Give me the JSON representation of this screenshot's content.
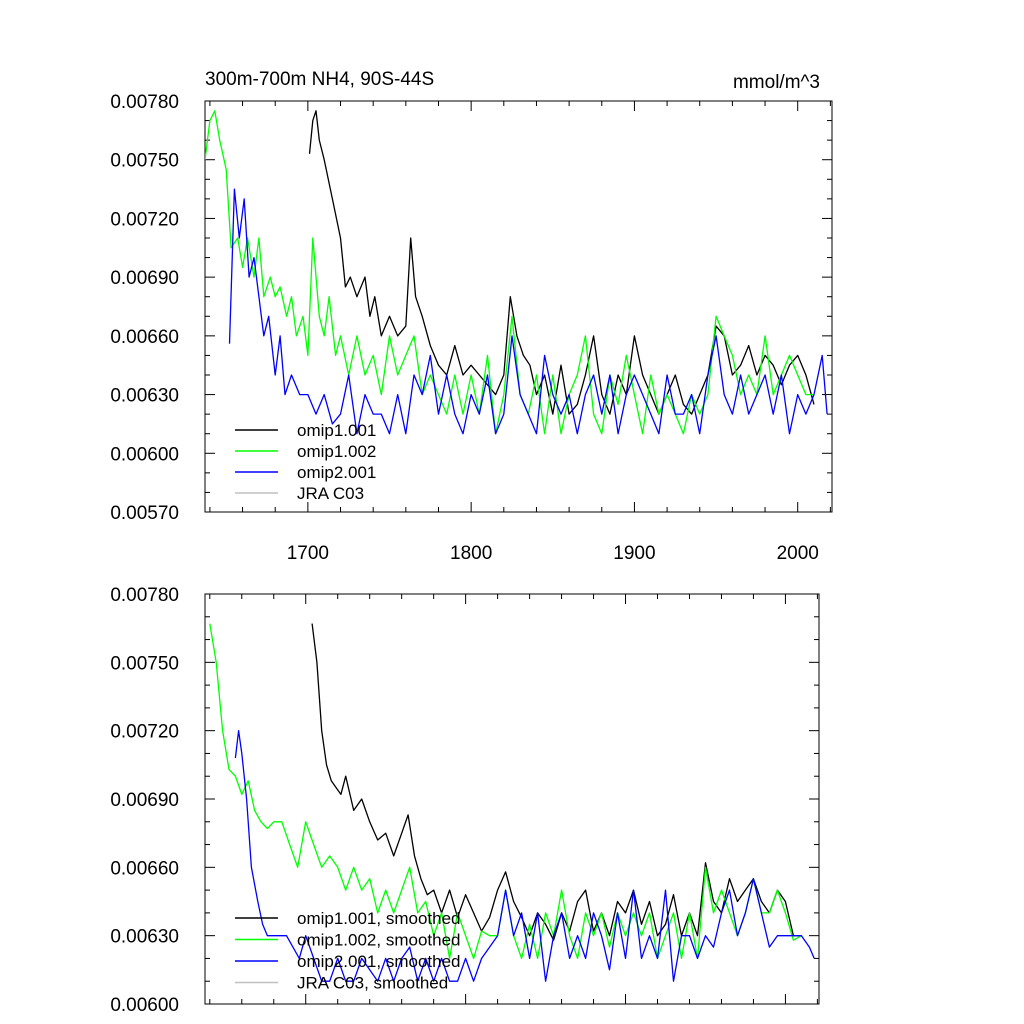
{
  "chart_data": [
    {
      "type": "line",
      "title_left": "300m-700m NH4, 90S-44S",
      "title_right": "mmol/m^3",
      "xlabel": "",
      "ylabel": "",
      "xlim": [
        1637,
        2021
      ],
      "ylim": [
        0.0057,
        0.0078
      ],
      "yticks": [
        "0.00570",
        "0.00600",
        "0.00630",
        "0.00660",
        "0.00690",
        "0.00720",
        "0.00750",
        "0.00780"
      ],
      "xticks": [
        "1700",
        "1800",
        "1900",
        "2000"
      ],
      "legend_position": "bottom-left",
      "series": [
        {
          "name": "omip1.001",
          "color": "#000000",
          "x": [
            1701,
            1703,
            1705,
            1707,
            1710,
            1715,
            1720,
            1723,
            1726,
            1730,
            1735,
            1738,
            1741,
            1745,
            1750,
            1755,
            1760,
            1763,
            1766,
            1770,
            1775,
            1780,
            1785,
            1790,
            1795,
            1800,
            1805,
            1810,
            1815,
            1820,
            1824,
            1828,
            1832,
            1836,
            1840,
            1845,
            1850,
            1855,
            1860,
            1865,
            1870,
            1875,
            1880,
            1885,
            1890,
            1895,
            1900,
            1905,
            1910,
            1915,
            1920,
            1925,
            1930,
            1935,
            1940,
            1945,
            1950,
            1955,
            1960,
            1965,
            1970,
            1975,
            1980,
            1985,
            1990,
            1995,
            2000,
            2005,
            2010
          ],
          "values": [
            0.00753,
            0.0077,
            0.00775,
            0.0076,
            0.0075,
            0.0073,
            0.0071,
            0.00685,
            0.0069,
            0.0068,
            0.0069,
            0.0067,
            0.0068,
            0.0066,
            0.0067,
            0.0066,
            0.00665,
            0.0071,
            0.0068,
            0.0067,
            0.00655,
            0.00645,
            0.0064,
            0.00655,
            0.0064,
            0.00645,
            0.0064,
            0.00635,
            0.0063,
            0.0064,
            0.0068,
            0.0066,
            0.0065,
            0.00645,
            0.0063,
            0.0064,
            0.0062,
            0.00645,
            0.0062,
            0.00625,
            0.0064,
            0.0066,
            0.0063,
            0.0062,
            0.0064,
            0.0063,
            0.0066,
            0.0064,
            0.0063,
            0.0062,
            0.0063,
            0.0064,
            0.00625,
            0.0062,
            0.0063,
            0.0064,
            0.00665,
            0.0066,
            0.0064,
            0.00645,
            0.00655,
            0.0064,
            0.0065,
            0.00645,
            0.00635,
            0.00645,
            0.0065,
            0.0064,
            0.00625
          ]
        },
        {
          "name": "omip1.002",
          "color": "#00ff00",
          "x": [
            1637,
            1640,
            1643,
            1646,
            1650,
            1653,
            1657,
            1660,
            1663,
            1667,
            1670,
            1673,
            1677,
            1680,
            1683,
            1687,
            1690,
            1693,
            1697,
            1700,
            1703,
            1707,
            1710,
            1713,
            1717,
            1720,
            1725,
            1730,
            1735,
            1740,
            1745,
            1750,
            1755,
            1760,
            1765,
            1770,
            1775,
            1780,
            1785,
            1790,
            1795,
            1800,
            1805,
            1810,
            1815,
            1820,
            1825,
            1830,
            1835,
            1840,
            1845,
            1850,
            1855,
            1860,
            1865,
            1870,
            1875,
            1880,
            1885,
            1890,
            1895,
            1900,
            1905,
            1910,
            1915,
            1920,
            1925,
            1930,
            1935,
            1940,
            1945,
            1950,
            1955,
            1960,
            1965,
            1970,
            1975,
            1980,
            1985,
            1990,
            1995,
            2000,
            2005,
            2010
          ],
          "values": [
            0.0075,
            0.0077,
            0.00775,
            0.0076,
            0.00745,
            0.00705,
            0.0071,
            0.00695,
            0.0071,
            0.0069,
            0.0071,
            0.0068,
            0.0069,
            0.0068,
            0.00685,
            0.0067,
            0.0068,
            0.0066,
            0.0067,
            0.0065,
            0.0071,
            0.0067,
            0.0066,
            0.0068,
            0.0065,
            0.0066,
            0.0064,
            0.0066,
            0.0064,
            0.0065,
            0.0063,
            0.0066,
            0.0064,
            0.0065,
            0.0066,
            0.0063,
            0.0064,
            0.0063,
            0.0062,
            0.0064,
            0.0062,
            0.0064,
            0.0062,
            0.0065,
            0.0061,
            0.0063,
            0.0067,
            0.0063,
            0.0062,
            0.0064,
            0.0061,
            0.0064,
            0.0061,
            0.0063,
            0.0064,
            0.0066,
            0.0062,
            0.0061,
            0.0064,
            0.00625,
            0.0065,
            0.0063,
            0.0061,
            0.0064,
            0.0062,
            0.0063,
            0.0062,
            0.0061,
            0.0063,
            0.0062,
            0.0063,
            0.0067,
            0.0066,
            0.0065,
            0.0063,
            0.0064,
            0.0063,
            0.0066,
            0.0063,
            0.0064,
            0.0065,
            0.0064,
            0.0063,
            0.0063
          ]
        },
        {
          "name": "omip2.001",
          "color": "#0000ff",
          "x": [
            1652,
            1655,
            1658,
            1661,
            1664,
            1667,
            1670,
            1673,
            1676,
            1680,
            1683,
            1686,
            1690,
            1695,
            1700,
            1705,
            1710,
            1715,
            1720,
            1725,
            1730,
            1735,
            1740,
            1745,
            1750,
            1755,
            1760,
            1765,
            1770,
            1775,
            1780,
            1785,
            1790,
            1795,
            1800,
            1805,
            1810,
            1815,
            1820,
            1825,
            1830,
            1835,
            1840,
            1845,
            1850,
            1855,
            1860,
            1865,
            1870,
            1875,
            1880,
            1885,
            1890,
            1895,
            1900,
            1905,
            1910,
            1915,
            1920,
            1925,
            1930,
            1935,
            1940,
            1945,
            1950,
            1955,
            1960,
            1965,
            1970,
            1975,
            1980,
            1985,
            1990,
            1995,
            2000,
            2005,
            2010,
            2015,
            2018
          ],
          "values": [
            0.00656,
            0.00735,
            0.0071,
            0.0073,
            0.0069,
            0.007,
            0.0068,
            0.0066,
            0.0067,
            0.0064,
            0.0066,
            0.0063,
            0.0064,
            0.0063,
            0.0063,
            0.0062,
            0.0063,
            0.00615,
            0.0062,
            0.0064,
            0.0061,
            0.0063,
            0.0062,
            0.0062,
            0.0061,
            0.0063,
            0.0061,
            0.0064,
            0.0063,
            0.0065,
            0.0062,
            0.0064,
            0.0062,
            0.0061,
            0.0063,
            0.0062,
            0.0064,
            0.0061,
            0.0062,
            0.0066,
            0.0063,
            0.0062,
            0.0061,
            0.0065,
            0.0063,
            0.0062,
            0.0063,
            0.0061,
            0.0063,
            0.0064,
            0.0062,
            0.0064,
            0.0061,
            0.0063,
            0.0064,
            0.0063,
            0.0062,
            0.0061,
            0.0064,
            0.0062,
            0.0062,
            0.0063,
            0.0061,
            0.0064,
            0.0066,
            0.0063,
            0.0062,
            0.0064,
            0.0062,
            0.0063,
            0.0064,
            0.0062,
            0.0064,
            0.0061,
            0.0063,
            0.0062,
            0.0063,
            0.0065,
            0.0062
          ]
        },
        {
          "name": "JRA C03",
          "color": "#c0c0c0",
          "x": [],
          "values": []
        }
      ]
    },
    {
      "type": "line",
      "xlim": [
        1637,
        2021
      ],
      "ylim": [
        0.006,
        0.0078
      ],
      "yticks": [
        "0.00600",
        "0.00630",
        "0.00660",
        "0.00690",
        "0.00720",
        "0.00750",
        "0.00780"
      ],
      "legend_position": "bottom-left",
      "series": [
        {
          "name": "omip1.001, smoothed",
          "color": "#000000",
          "x": [
            1704,
            1707,
            1710,
            1713,
            1716,
            1719,
            1722,
            1725,
            1730,
            1735,
            1740,
            1745,
            1750,
            1755,
            1760,
            1764,
            1768,
            1772,
            1776,
            1780,
            1785,
            1790,
            1795,
            1800,
            1805,
            1810,
            1815,
            1820,
            1825,
            1830,
            1835,
            1840,
            1845,
            1850,
            1855,
            1860,
            1865,
            1870,
            1875,
            1880,
            1885,
            1890,
            1895,
            1900,
            1905,
            1910,
            1915,
            1920,
            1925,
            1930,
            1935,
            1940,
            1945,
            1950,
            1955,
            1960,
            1965,
            1970,
            1975,
            1980,
            1985,
            1990,
            1995,
            2000,
            2005,
            2010
          ],
          "values": [
            0.00767,
            0.0075,
            0.0072,
            0.00705,
            0.00698,
            0.00695,
            0.00692,
            0.007,
            0.00685,
            0.0069,
            0.0068,
            0.00672,
            0.00675,
            0.00665,
            0.00675,
            0.00683,
            0.00665,
            0.00655,
            0.00648,
            0.0065,
            0.0064,
            0.0065,
            0.00638,
            0.00648,
            0.0064,
            0.00632,
            0.00638,
            0.0065,
            0.00658,
            0.00645,
            0.00638,
            0.0063,
            0.0064,
            0.00635,
            0.00628,
            0.0064,
            0.00632,
            0.00645,
            0.0065,
            0.00632,
            0.0064,
            0.0063,
            0.00645,
            0.0064,
            0.0065,
            0.00635,
            0.00645,
            0.0063,
            0.00635,
            0.00648,
            0.0063,
            0.0064,
            0.0063,
            0.00662,
            0.00645,
            0.0064,
            0.00655,
            0.00645,
            0.0065,
            0.00655,
            0.00645,
            0.0064,
            0.0065,
            0.00645,
            0.0063,
            0.0063
          ]
        },
        {
          "name": "omip1.002, smoothed",
          "color": "#00ff00",
          "x": [
            1640,
            1644,
            1648,
            1652,
            1656,
            1660,
            1664,
            1668,
            1672,
            1676,
            1680,
            1685,
            1690,
            1695,
            1700,
            1705,
            1710,
            1715,
            1720,
            1725,
            1730,
            1735,
            1740,
            1745,
            1750,
            1755,
            1760,
            1765,
            1770,
            1775,
            1780,
            1785,
            1790,
            1795,
            1800,
            1805,
            1810,
            1815,
            1820,
            1825,
            1830,
            1835,
            1840,
            1845,
            1850,
            1855,
            1860,
            1865,
            1870,
            1875,
            1880,
            1885,
            1890,
            1895,
            1900,
            1905,
            1910,
            1915,
            1920,
            1925,
            1930,
            1935,
            1940,
            1945,
            1950,
            1955,
            1960,
            1965,
            1970,
            1975,
            1980,
            1985,
            1990,
            1995,
            2000,
            2005,
            2010
          ],
          "values": [
            0.00767,
            0.0075,
            0.0072,
            0.00703,
            0.007,
            0.00692,
            0.00698,
            0.00685,
            0.0068,
            0.00677,
            0.0068,
            0.0068,
            0.0067,
            0.0066,
            0.0068,
            0.0067,
            0.0066,
            0.00665,
            0.0066,
            0.0065,
            0.0066,
            0.0065,
            0.00655,
            0.0064,
            0.0065,
            0.0064,
            0.0065,
            0.0066,
            0.0064,
            0.00645,
            0.0063,
            0.0064,
            0.0062,
            0.0064,
            0.0063,
            0.0062,
            0.00632,
            0.0063,
            0.0063,
            0.0065,
            0.0063,
            0.0062,
            0.00635,
            0.0062,
            0.0064,
            0.0063,
            0.0065,
            0.0063,
            0.0062,
            0.0064,
            0.0063,
            0.0064,
            0.00625,
            0.0064,
            0.0063,
            0.0064,
            0.0063,
            0.0064,
            0.0062,
            0.0063,
            0.0064,
            0.0062,
            0.0064,
            0.0062,
            0.0066,
            0.0064,
            0.0065,
            0.0064,
            0.0063,
            0.0064,
            0.00655,
            0.0064,
            0.0064,
            0.0065,
            0.0064,
            0.00628,
            0.0063
          ]
        },
        {
          "name": "omip2.001, smoothed",
          "color": "#0000ff",
          "x": [
            1656,
            1658,
            1660,
            1663,
            1666,
            1670,
            1673,
            1676,
            1680,
            1684,
            1688,
            1692,
            1696,
            1700,
            1705,
            1710,
            1715,
            1720,
            1725,
            1730,
            1735,
            1740,
            1745,
            1750,
            1755,
            1760,
            1765,
            1770,
            1775,
            1780,
            1785,
            1790,
            1795,
            1800,
            1805,
            1810,
            1815,
            1820,
            1825,
            1830,
            1835,
            1840,
            1845,
            1850,
            1855,
            1860,
            1865,
            1870,
            1875,
            1880,
            1885,
            1890,
            1895,
            1900,
            1905,
            1910,
            1915,
            1920,
            1925,
            1930,
            1935,
            1940,
            1945,
            1950,
            1955,
            1960,
            1965,
            1970,
            1975,
            1980,
            1985,
            1990,
            1995,
            2000,
            2005,
            2010,
            2015,
            2018
          ],
          "values": [
            0.00708,
            0.0072,
            0.0071,
            0.0069,
            0.0066,
            0.00645,
            0.00635,
            0.0063,
            0.0063,
            0.0063,
            0.0063,
            0.00625,
            0.0062,
            0.0063,
            0.0062,
            0.0061,
            0.0061,
            0.0062,
            0.0061,
            0.0061,
            0.0062,
            0.00615,
            0.0061,
            0.0062,
            0.0061,
            0.0062,
            0.00625,
            0.0061,
            0.0062,
            0.0061,
            0.0062,
            0.0061,
            0.0061,
            0.0062,
            0.0061,
            0.0062,
            0.00625,
            0.0063,
            0.0065,
            0.0063,
            0.0064,
            0.0062,
            0.0064,
            0.0061,
            0.0063,
            0.0064,
            0.0062,
            0.0063,
            0.0062,
            0.0064,
            0.0063,
            0.00615,
            0.0064,
            0.0062,
            0.0065,
            0.0062,
            0.0063,
            0.0062,
            0.0065,
            0.0061,
            0.0063,
            0.0063,
            0.0062,
            0.0063,
            0.00625,
            0.0064,
            0.0065,
            0.0063,
            0.0064,
            0.00655,
            0.0064,
            0.00625,
            0.0063,
            0.0063,
            0.0063,
            0.0063,
            0.00625,
            0.0062
          ]
        },
        {
          "name": "JRA C03, smoothed",
          "color": "#c0c0c0",
          "x": [],
          "values": []
        }
      ]
    }
  ]
}
